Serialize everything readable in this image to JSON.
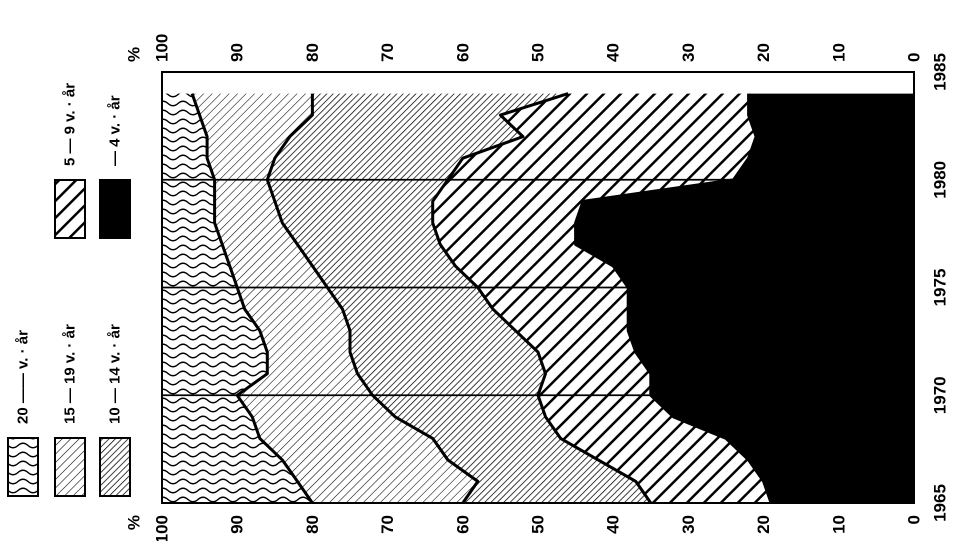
{
  "chart_data": {
    "type": "area",
    "stacked": true,
    "orientation": "rotated",
    "x_axis": {
      "label": "",
      "ticks": [
        "1965",
        "1970",
        "1975",
        "1980",
        "1985"
      ],
      "range": [
        1965,
        1985
      ]
    },
    "y_axis": {
      "label_left": "%",
      "label_right": "%",
      "ticks": [
        "0",
        "10",
        "20",
        "30",
        "40",
        "50",
        "60",
        "70",
        "80",
        "90",
        "100"
      ],
      "range": [
        0,
        100
      ]
    },
    "x": [
      1965,
      1966,
      1967,
      1968,
      1969,
      1970,
      1971,
      1972,
      1973,
      1974,
      1975,
      1976,
      1977,
      1978,
      1979,
      1980,
      1981,
      1982,
      1983,
      1984
    ],
    "boundaries": [
      {
        "name": "4 v. - år",
        "upper": [
          19,
          20,
          22,
          25,
          32,
          35,
          35,
          37,
          38,
          38,
          38,
          40,
          45,
          45,
          44,
          24,
          22,
          21,
          22,
          22
        ]
      },
      {
        "name": "5 - 9 v. - år",
        "upper": [
          35,
          37,
          42,
          47,
          49,
          50,
          49,
          50,
          53,
          56,
          58,
          61,
          63,
          64,
          64,
          62,
          60,
          52,
          55,
          46
        ]
      },
      {
        "name": "10 - 14 v. - år",
        "upper": [
          60,
          58,
          62,
          64,
          69,
          72,
          74,
          75,
          75,
          76,
          78,
          80,
          82,
          84,
          85,
          86,
          85,
          83,
          80,
          80
        ]
      },
      {
        "name": "15 - 19 v. - år",
        "upper": [
          80,
          82,
          84,
          87,
          88,
          90,
          86,
          86,
          87,
          89,
          90,
          91,
          92,
          93,
          93,
          93,
          94,
          94,
          95,
          96
        ]
      },
      {
        "name": "20 v. - år",
        "upper": [
          100,
          100,
          100,
          100,
          100,
          100,
          100,
          100,
          100,
          100,
          100,
          100,
          100,
          100,
          100,
          100,
          100,
          100,
          100,
          100
        ]
      }
    ],
    "vertical_lines_at": [
      1970,
      1975,
      1980
    ],
    "legend": {
      "placement": "left",
      "items": [
        {
          "label": "20 —— v. · år",
          "pattern": "wavy"
        },
        {
          "label": "15 — 19 v. · år",
          "pattern": "fine-hatch"
        },
        {
          "label": "10 — 14 v. · år",
          "pattern": "dense-hatch"
        },
        {
          "label": "5 — 9 v. · år",
          "pattern": "bold-hatch"
        },
        {
          "label": "— 4 v. · år",
          "pattern": "solid-black"
        }
      ]
    },
    "colors": {
      "ink": "#000000",
      "paper": "#ffffff"
    }
  }
}
